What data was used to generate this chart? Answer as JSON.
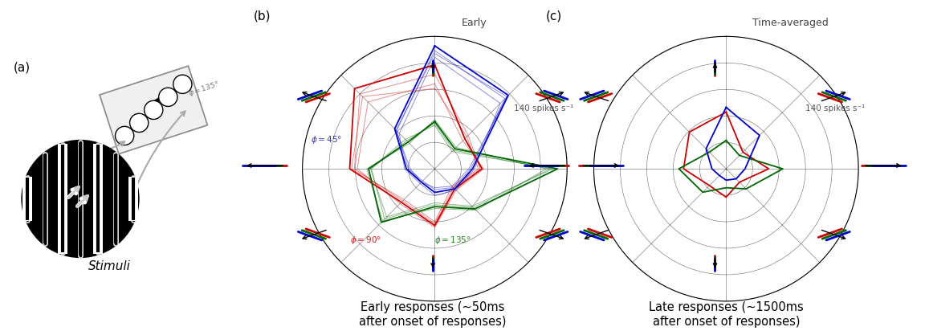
{
  "fig_width": 11.52,
  "fig_height": 4.12,
  "panel_a_label": "(a)",
  "panel_b_label": "(b)",
  "panel_c_label": "(c)",
  "panel_a_caption": "Stimuli",
  "panel_b_caption": "Early responses (~50ms\nafter onset of responses)",
  "panel_c_caption": "Late responses (~1500ms\nafter onset of responses)",
  "panel_b_title": "Early",
  "panel_c_title": "Time-averaged",
  "scale_label": "140 spikes s⁻¹",
  "max_r": 140,
  "colors_rgb": [
    "#cc0000",
    "#006600",
    "#0000cc"
  ],
  "directions_deg": [
    0,
    45,
    90,
    135,
    180,
    225,
    270,
    315
  ],
  "early_data": {
    "red": [
      110,
      45,
      50,
      30,
      60,
      50,
      90,
      120
    ],
    "green": [
      50,
      30,
      130,
      60,
      40,
      80,
      70,
      40
    ],
    "blue": [
      130,
      110,
      40,
      30,
      25,
      20,
      30,
      60
    ]
  },
  "late_data": {
    "red": [
      60,
      25,
      45,
      20,
      30,
      25,
      45,
      55
    ],
    "green": [
      30,
      20,
      60,
      30,
      20,
      35,
      50,
      25
    ],
    "blue": [
      65,
      50,
      20,
      15,
      12,
      10,
      15,
      30
    ]
  },
  "extra_early": [
    {
      "red": [
        100,
        50,
        48,
        28,
        58,
        48,
        85,
        112
      ],
      "green": [
        48,
        28,
        122,
        58,
        38,
        75,
        67,
        42
      ],
      "blue": [
        125,
        105,
        38,
        28,
        22,
        18,
        28,
        57
      ]
    },
    {
      "red": [
        90,
        42,
        52,
        32,
        62,
        52,
        82,
        100
      ],
      "green": [
        52,
        32,
        118,
        62,
        42,
        78,
        72,
        38
      ],
      "blue": [
        118,
        98,
        42,
        32,
        28,
        22,
        32,
        53
      ]
    },
    {
      "red": [
        85,
        48,
        46,
        26,
        56,
        46,
        88,
        108
      ],
      "green": [
        46,
        26,
        125,
        56,
        36,
        72,
        68,
        44
      ],
      "blue": [
        122,
        108,
        36,
        26,
        20,
        20,
        26,
        58
      ]
    }
  ]
}
